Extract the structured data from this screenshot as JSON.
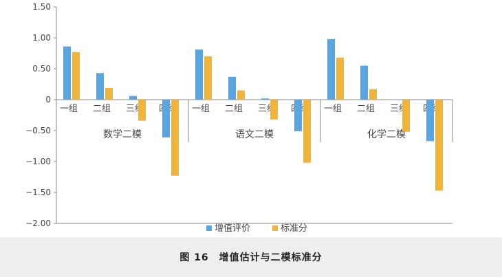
{
  "chart_data": {
    "type": "bar",
    "ylim": [
      -2.0,
      1.5
    ],
    "y_ticks": [
      "1.50",
      "1.00",
      "0.50",
      "0",
      "−0.50",
      "−1.00",
      "−1.50",
      "−2.00"
    ],
    "groups": [
      {
        "label": "数学二模",
        "categories": [
          "一组",
          "二组",
          "三组",
          "四组"
        ]
      },
      {
        "label": "语文二模",
        "categories": [
          "一组",
          "二组",
          "三组",
          "四组"
        ]
      },
      {
        "label": "化学二模",
        "categories": [
          "一组",
          "二组",
          "三组",
          "四组"
        ]
      }
    ],
    "series": [
      {
        "name": "增值评价",
        "color": "#5aa5de",
        "values": [
          0.86,
          0.43,
          0.06,
          -0.61,
          0.81,
          0.37,
          0.02,
          -0.51,
          0.98,
          0.55,
          0.0,
          -0.67
        ]
      },
      {
        "name": "标准分",
        "color": "#f0b43c",
        "values": [
          0.77,
          0.19,
          -0.34,
          -1.23,
          0.7,
          0.15,
          -0.32,
          -1.02,
          0.68,
          0.17,
          -0.52,
          -1.47
        ]
      }
    ],
    "legend_position": "bottom"
  },
  "caption": "图 16　增值估计与二模标准分"
}
